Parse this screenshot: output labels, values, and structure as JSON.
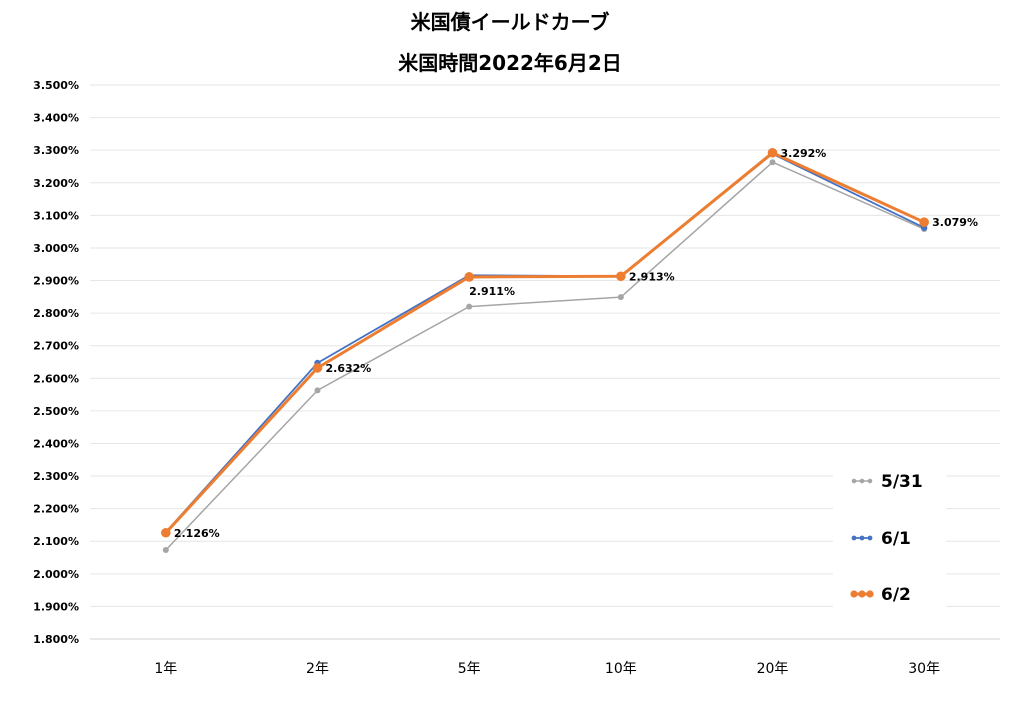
{
  "chart_data": {
    "type": "line",
    "title": "米国債イールドカーブ",
    "subtitle": "米国時間2022年6月2日",
    "categories": [
      "1年",
      "2年",
      "5年",
      "10年",
      "20年",
      "30年"
    ],
    "y_ticks": [
      "1.800%",
      "1.900%",
      "2.000%",
      "2.100%",
      "2.200%",
      "2.300%",
      "2.400%",
      "2.500%",
      "2.600%",
      "2.700%",
      "2.800%",
      "2.900%",
      "3.000%",
      "3.100%",
      "3.200%",
      "3.300%",
      "3.400%",
      "3.500%"
    ],
    "ylim": [
      1.8,
      3.5
    ],
    "grid": true,
    "legend_position": "right",
    "series": [
      {
        "name": "5/31",
        "color": "#A5A5A5",
        "values": [
          2.073,
          2.563,
          2.82,
          2.849,
          3.263,
          3.058
        ]
      },
      {
        "name": "6/1",
        "color": "#4472C4",
        "values": [
          2.128,
          2.647,
          2.916,
          2.913,
          3.289,
          3.062
        ]
      },
      {
        "name": "6/2",
        "color": "#ED7D31",
        "values": [
          2.126,
          2.632,
          2.911,
          2.913,
          3.292,
          3.079
        ]
      }
    ],
    "data_labels": {
      "series": "6/2",
      "labels": [
        "2.126%",
        "2.632%",
        "2.911%",
        "2.913%",
        "3.292%",
        "3.079%"
      ]
    }
  }
}
